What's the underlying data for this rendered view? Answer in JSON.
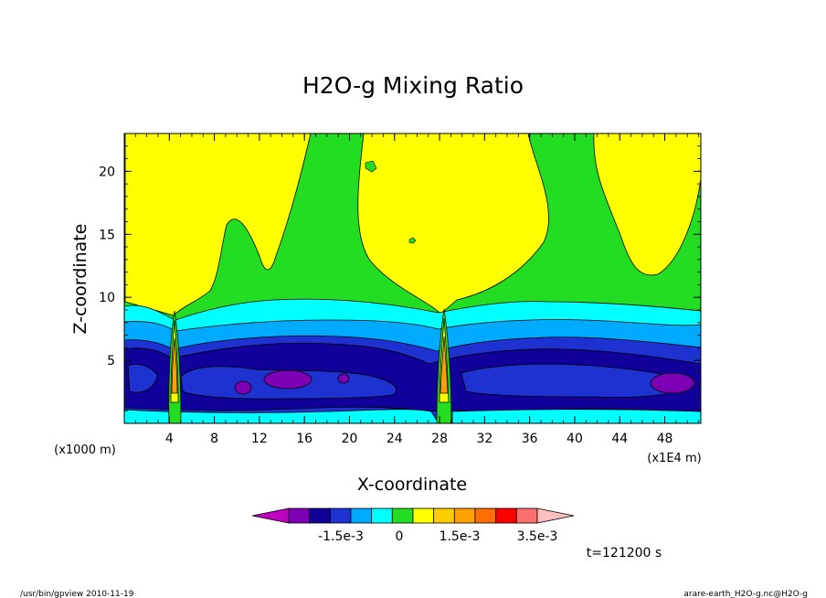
{
  "chart_data": {
    "type": "heatmap",
    "title": "H2O-g Mixing Ratio",
    "xlabel": "X-coordinate",
    "ylabel": "Z-coordinate",
    "x_unit_label": "(x1000 m)",
    "x_scale_label": "(x1E4 m)",
    "xlim": [
      0,
      51.2
    ],
    "ylim": [
      0,
      23
    ],
    "x_ticks": [
      "4",
      "8",
      "12",
      "16",
      "20",
      "24",
      "28",
      "32",
      "36",
      "40",
      "44",
      "48"
    ],
    "y_ticks": [
      "5",
      "10",
      "15",
      "20"
    ],
    "time_label": "t=121200 s",
    "colorbar": {
      "colors": [
        "#c000c0",
        "#7d00b4",
        "#12009b",
        "#1e32d2",
        "#00aaff",
        "#00ffff",
        "#22dd22",
        "#ffff00",
        "#ffcc00",
        "#ffa000",
        "#ff6e00",
        "#ff0000",
        "#ff6e6e",
        "#ffbebe"
      ],
      "labels": [
        "-1.5e-3",
        "0",
        "1.5e-3",
        "3.5e-3"
      ]
    },
    "bands": [
      {
        "level": "purple",
        "color": "#7d00b4"
      },
      {
        "level": "navy",
        "color": "#12009b"
      },
      {
        "level": "blue",
        "color": "#1e32d2"
      },
      {
        "level": "light-blue",
        "color": "#00aaff"
      },
      {
        "level": "cyan",
        "color": "#00ffff"
      },
      {
        "level": "green",
        "color": "#22dd22"
      },
      {
        "level": "yellow",
        "color": "#ffff00"
      }
    ]
  },
  "footer": {
    "left": "/usr/bin/gpview  2010-11-19",
    "right": "arare-earth_H2O-g.nc@H2O-g"
  }
}
